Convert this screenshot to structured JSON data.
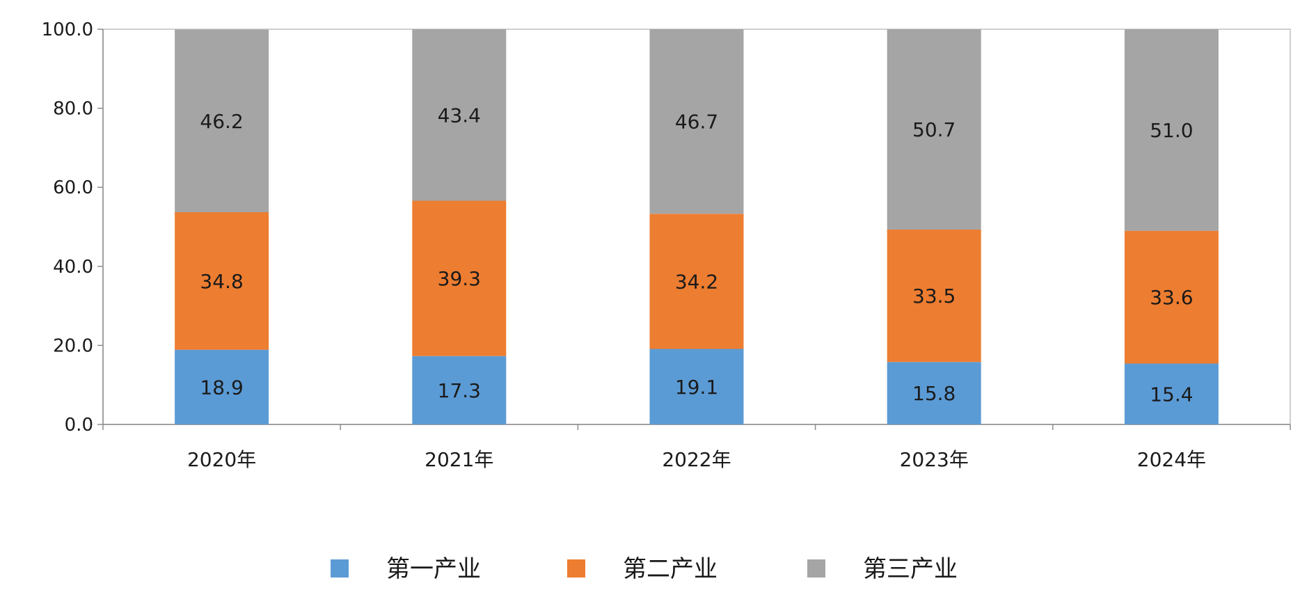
{
  "chart_data": {
    "type": "bar",
    "stacked": true,
    "categories": [
      "2020年",
      "2021年",
      "2022年",
      "2023年",
      "2024年"
    ],
    "series": [
      {
        "name": "第一产业",
        "values": [
          18.9,
          17.3,
          19.1,
          15.8,
          15.4
        ],
        "color": "#5b9bd5"
      },
      {
        "name": "第二产业",
        "values": [
          34.8,
          39.3,
          34.2,
          33.5,
          33.6
        ],
        "color": "#ed7d31"
      },
      {
        "name": "第三产业",
        "values": [
          46.2,
          43.4,
          46.7,
          50.7,
          51.0
        ],
        "color": "#a5a5a5"
      }
    ],
    "ylim": [
      0,
      100
    ],
    "yticks": [
      "0.0",
      "20.0",
      "40.0",
      "60.0",
      "80.0",
      "100.0"
    ],
    "legend_position": "bottom",
    "grid": false,
    "data_labels": true
  }
}
